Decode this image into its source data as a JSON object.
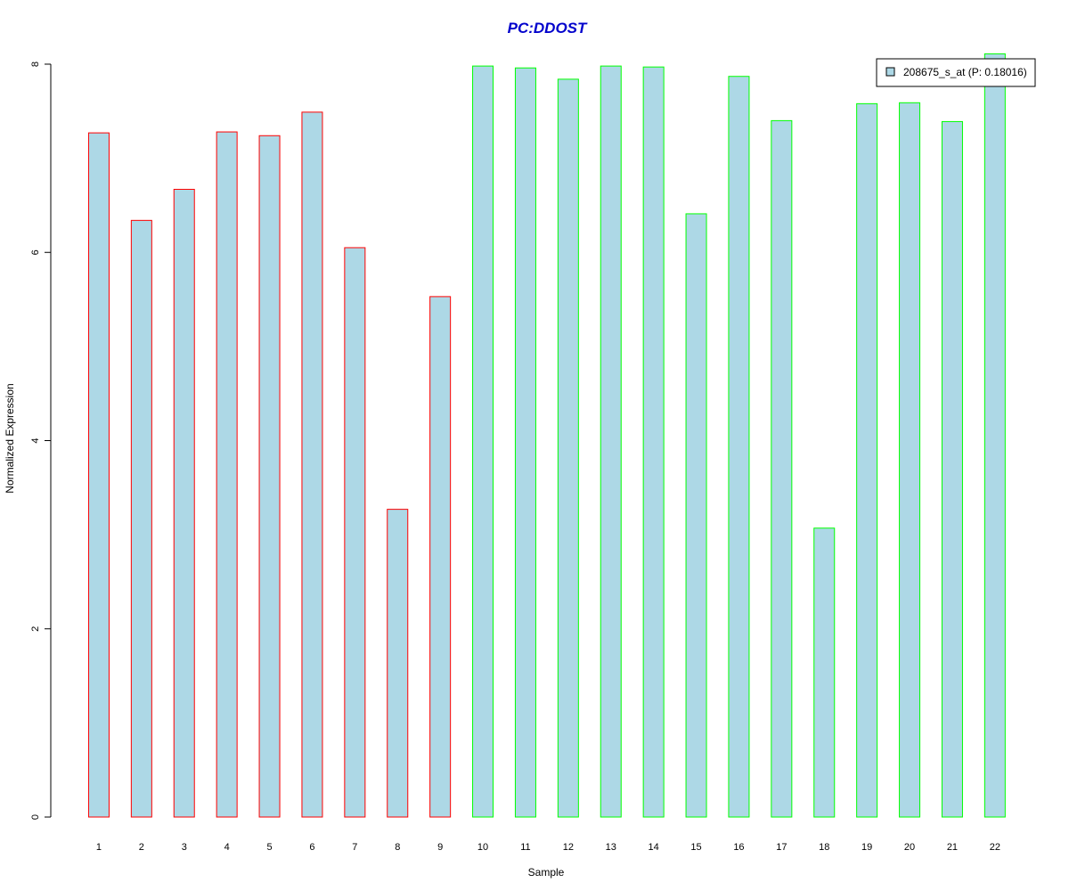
{
  "chart_data": {
    "type": "bar",
    "title": "PC:DDOST",
    "title_color": "#0000cc",
    "xlabel": "Sample",
    "ylabel": "Normalized Expression",
    "ylim": [
      0,
      8
    ],
    "yticks": [
      0,
      2,
      4,
      6,
      8
    ],
    "grid": false,
    "legend_position": "top-right",
    "categories": [
      "1",
      "2",
      "3",
      "4",
      "5",
      "6",
      "7",
      "8",
      "9",
      "10",
      "11",
      "12",
      "13",
      "14",
      "15",
      "16",
      "17",
      "18",
      "19",
      "20",
      "21",
      "22"
    ],
    "series": [
      {
        "name": "208675_s_at (P: 0.18016)",
        "fill_color": "#add8e6",
        "values": [
          7.27,
          6.34,
          6.67,
          7.28,
          7.24,
          7.49,
          6.05,
          3.27,
          5.53,
          7.98,
          7.96,
          7.84,
          7.98,
          7.97,
          6.41,
          7.87,
          7.4,
          3.07,
          7.58,
          7.59,
          7.39,
          8.11
        ]
      }
    ],
    "groups": [
      {
        "samples": [
          "1",
          "2",
          "3",
          "4",
          "5",
          "6",
          "7",
          "8",
          "9"
        ],
        "border_color": "#ff0000"
      },
      {
        "samples": [
          "10",
          "11",
          "12",
          "13",
          "14",
          "15",
          "16",
          "17",
          "18",
          "19",
          "20",
          "21",
          "22"
        ],
        "border_color": "#00ff00"
      }
    ]
  }
}
